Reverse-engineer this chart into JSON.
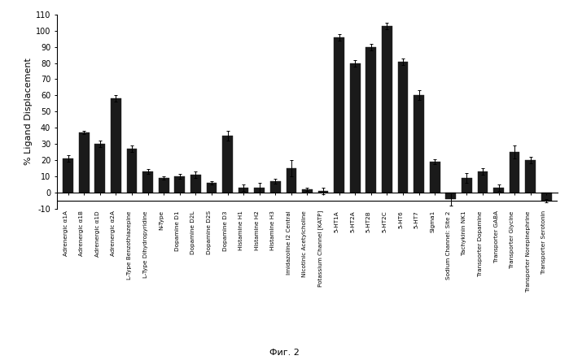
{
  "categories": [
    "Adrenergic α1A",
    "Adrenergic α1B",
    "Adrenergic α1D",
    "Adrenergic α2A",
    "L-Type Benzothiazepine",
    "L-Type Dihydropyridine",
    "N-Type",
    "Dopamine D1",
    "Dopamine D2L",
    "Dopamine D2S",
    "Dopamine D3",
    "Histamine H1",
    "Histamine H2",
    "Histamine H3",
    "Imidazoline I2 Central",
    "Nicotinic Acetylcholine",
    "Potassium Channel [KATP]",
    "5-HT1A",
    "5-HT2A",
    "5-HT2B",
    "5-HT2C",
    "5-HT6",
    "5-HT7",
    "Sigma1",
    "Sodium Channel: Site 2",
    "Tachykinin NK1",
    "Transporter Dopamine",
    "Transporter GABA",
    "Transporter Glycine",
    "Transporter Norepinephrine",
    "Transporter Serotonin"
  ],
  "values": [
    21,
    37,
    30,
    58,
    27,
    13,
    9,
    10,
    11,
    6,
    35,
    3,
    3,
    7,
    15,
    2,
    1,
    96,
    80,
    90,
    103,
    81,
    60,
    19,
    -4,
    9,
    13,
    3,
    25,
    20,
    -5
  ],
  "errors": [
    2,
    1,
    2,
    2,
    2,
    1.5,
    1,
    1.5,
    2,
    1,
    3,
    2,
    3,
    1.5,
    5,
    1,
    2,
    2,
    2,
    2,
    2,
    2,
    3,
    1.5,
    4,
    3,
    2,
    2,
    4,
    2,
    1
  ],
  "bar_color": "#1a1a1a",
  "bar_width": 0.65,
  "ylim": [
    -10,
    110
  ],
  "yticks": [
    -10,
    0,
    10,
    20,
    30,
    40,
    50,
    60,
    70,
    80,
    90,
    100,
    110
  ],
  "ylabel": "% Ligand Displacement",
  "caption": "Фиг. 2",
  "background_color": "#ffffff"
}
